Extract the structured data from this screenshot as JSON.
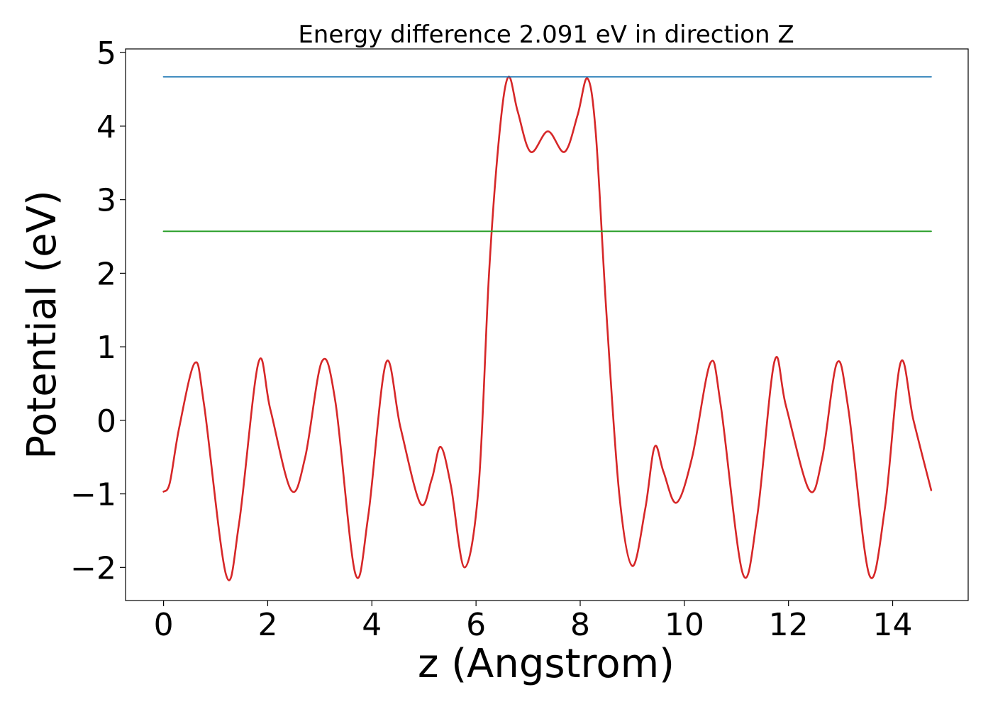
{
  "chart_data": {
    "type": "line",
    "title": "Energy difference 2.091 eV in direction Z",
    "xlabel": "z (Angstrom)",
    "ylabel": "Potential (eV)",
    "xlim": [
      -0.73,
      15.45
    ],
    "ylim": [
      -2.45,
      5.05
    ],
    "xticks": [
      0,
      2,
      4,
      6,
      8,
      10,
      12,
      14
    ],
    "yticks": [
      -2,
      -1,
      0,
      1,
      2,
      3,
      4,
      5
    ],
    "xtick_labels": [
      "0",
      "2",
      "4",
      "6",
      "8",
      "10",
      "12",
      "14"
    ],
    "ytick_labels": [
      "−2",
      "−1",
      "0",
      "1",
      "2",
      "3",
      "4",
      "5"
    ],
    "grid": false,
    "series": [
      {
        "color": "#d62728",
        "style": "curve",
        "x": [
          0,
          0.12,
          0.3,
          0.6,
          0.78,
          1.2,
          1.45,
          1.82,
          2.05,
          2.45,
          2.72,
          3.04,
          3.3,
          3.68,
          3.93,
          4.27,
          4.55,
          4.93,
          5.15,
          5.32,
          5.52,
          5.78,
          6.05,
          6.25,
          6.45,
          6.62,
          6.8,
          7.05,
          7.38,
          7.7,
          7.95,
          8.14,
          8.3,
          8.5,
          8.75,
          9.0,
          9.25,
          9.43,
          9.6,
          9.85,
          10.15,
          10.5,
          10.7,
          11.12,
          11.4,
          11.73,
          11.95,
          12.4,
          12.65,
          12.93,
          13.15,
          13.55,
          13.85,
          14.15,
          14.4,
          14.74
        ],
        "values": [
          -0.97,
          -0.85,
          -0.1,
          0.78,
          0.2,
          -2.1,
          -1.4,
          0.78,
          0.15,
          -0.95,
          -0.5,
          0.8,
          0.25,
          -2.08,
          -1.3,
          0.78,
          -0.1,
          -1.13,
          -0.8,
          -0.36,
          -0.9,
          -2.0,
          -0.9,
          2.0,
          3.9,
          4.67,
          4.2,
          3.65,
          3.93,
          3.65,
          4.15,
          4.65,
          3.9,
          1.5,
          -1.0,
          -1.98,
          -1.2,
          -0.36,
          -0.7,
          -1.12,
          -0.5,
          0.78,
          0.2,
          -2.08,
          -1.3,
          0.8,
          0.2,
          -0.95,
          -0.5,
          0.78,
          0.15,
          -2.1,
          -1.2,
          0.78,
          0.0,
          -0.95
        ]
      },
      {
        "color": "#1f77b4",
        "style": "line",
        "x": [
          0,
          14.74
        ],
        "values": [
          4.67,
          4.67
        ]
      },
      {
        "color": "#2ca02c",
        "style": "line",
        "x": [
          0,
          14.74
        ],
        "values": [
          2.57,
          2.57
        ]
      }
    ]
  }
}
